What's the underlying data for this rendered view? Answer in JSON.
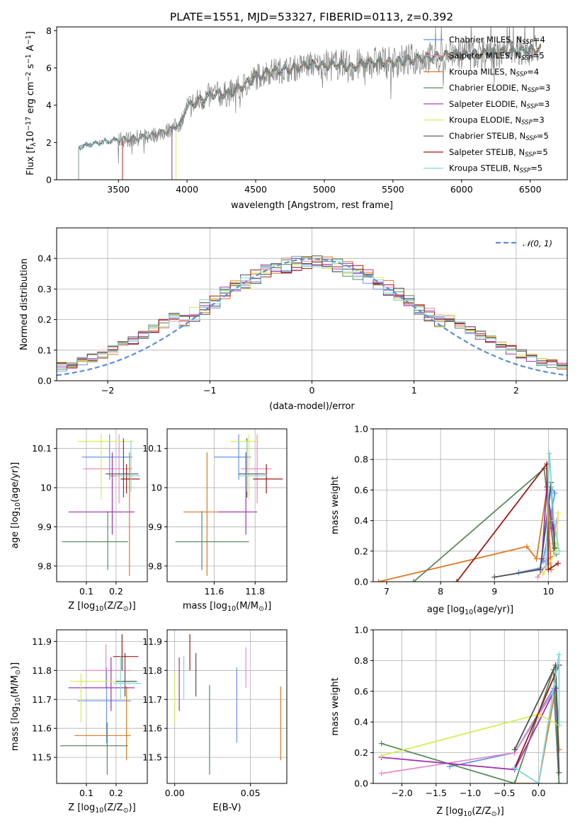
{
  "title": "PLATE=1551, MJD=53327, FIBERID=0113, z=0.392",
  "colors": [
    "#6495ed",
    "#e88bc4",
    "#dd7a20",
    "#5c8a5c",
    "#a030b0",
    "#d8ec50",
    "#505050",
    "#a01818",
    "#80d8d8"
  ],
  "chart_data": [
    {
      "id": "spectrum",
      "type": "line",
      "xlabel": "wavelength [Angstrom, rest frame]",
      "ylabel": "Flux [f",
      "ylabel_sub": "λ",
      "ylabel_mid": "10",
      "ylabel_exp1": "−17",
      "ylabel_mid2": " erg cm",
      "ylabel_exp2": "−2",
      "ylabel_mid3": " s",
      "ylabel_exp3": "−1",
      "ylabel_mid4": " A",
      "ylabel_exp4": "−1",
      "ylabel_end": "]",
      "xlim": [
        3050,
        6770
      ],
      "ylim": [
        0,
        8.2
      ],
      "xticks": [
        3500,
        4000,
        4500,
        5000,
        5500,
        6000,
        6500
      ],
      "yticks": [
        0,
        2,
        4,
        6,
        8
      ],
      "legend": [
        {
          "name": "Chabrier MILES, N",
          "sub": "SSP",
          "suffix": "=4"
        },
        {
          "name": "Salpeter MILES, N",
          "sub": "SSP",
          "suffix": "=5"
        },
        {
          "name": "Kroupa MILES, N",
          "sub": "SSP",
          "suffix": "=4"
        },
        {
          "name": "Chabrier ELODIE, N",
          "sub": "SSP",
          "suffix": "=3"
        },
        {
          "name": "Salpeter ELODIE, N",
          "sub": "SSP",
          "suffix": "=3"
        },
        {
          "name": "Kroupa ELODIE, N",
          "sub": "SSP",
          "suffix": "=3"
        },
        {
          "name": "Chabrier STELIB, N",
          "sub": "SSP",
          "suffix": "=5"
        },
        {
          "name": "Salpeter STELIB, N",
          "sub": "SSP",
          "suffix": "=5"
        },
        {
          "name": "Kroupa STELIB, N",
          "sub": "SSP",
          "suffix": "=5"
        }
      ],
      "data_start": 3210,
      "model_starts": [
        3210,
        3530,
        3530,
        3890,
        3890,
        3920,
        3210,
        3530,
        3210
      ],
      "continuum": [
        [
          3210,
          1.75
        ],
        [
          3300,
          1.9
        ],
        [
          3400,
          2.05
        ],
        [
          3500,
          2.15
        ],
        [
          3600,
          2.2
        ],
        [
          3700,
          2.3
        ],
        [
          3800,
          2.5
        ],
        [
          3850,
          2.6
        ],
        [
          3950,
          3.0
        ],
        [
          4000,
          3.9
        ],
        [
          4100,
          4.3
        ],
        [
          4200,
          4.6
        ],
        [
          4300,
          4.6
        ],
        [
          4400,
          5.0
        ],
        [
          4500,
          5.5
        ],
        [
          4600,
          5.8
        ],
        [
          4700,
          5.9
        ],
        [
          4800,
          6.0
        ],
        [
          4900,
          6.2
        ],
        [
          5000,
          6.1
        ],
        [
          5100,
          6.2
        ],
        [
          5200,
          6.0
        ],
        [
          5300,
          6.3
        ],
        [
          5400,
          6.3
        ],
        [
          5500,
          6.3
        ],
        [
          5600,
          6.4
        ],
        [
          5700,
          6.5
        ],
        [
          5800,
          6.6
        ],
        [
          5900,
          6.7
        ],
        [
          6000,
          6.7
        ],
        [
          6200,
          6.8
        ],
        [
          6400,
          6.9
        ],
        [
          6580,
          7.0
        ]
      ]
    },
    {
      "id": "residuals",
      "type": "step",
      "xlabel": "(data-model)/error",
      "ylabel": "Normed distribution",
      "xlim": [
        -2.5,
        2.5
      ],
      "ylim": [
        0,
        0.5
      ],
      "xticks": [
        -2,
        -1,
        0,
        1,
        2
      ],
      "xtick_labels": [
        "−2",
        "−1",
        "0",
        "1",
        "2"
      ],
      "yticks": [
        0.0,
        0.1,
        0.2,
        0.3,
        0.4
      ],
      "ytick_labels": [
        "0.0",
        "0.1",
        "0.2",
        "0.3",
        "0.4"
      ],
      "legend": "𝒩(0, 1)",
      "bin_width": 0.1
    },
    {
      "id": "age_vs_Z",
      "type": "errorbar",
      "xlabel": "Z [log",
      "xlabel_sub": "10",
      "xlabel_end": "(Z/Z",
      "xlabel_sub2": "⊙",
      "xlabel_end2": ")]",
      "ylabel": "age  [log",
      "ylabel_sub": "10",
      "ylabel_end": "(age/yr)]",
      "xlim": [
        0.0,
        0.305
      ],
      "ylim": [
        9.76,
        10.15
      ],
      "xticks": [
        0.1,
        0.2
      ],
      "yticks": [
        9.8,
        9.9,
        10.0,
        10.1
      ],
      "points": [
        {
          "x": 0.178,
          "xl": 0.085,
          "xh": 0.255,
          "y": 10.078,
          "yl": 10.02,
          "yh": 10.136
        },
        {
          "x": 0.21,
          "xl": 0.09,
          "xh": 0.255,
          "y": 10.048,
          "yl": 9.96,
          "yh": 10.136
        },
        {
          "x": 0.245,
          "xl": 0.18,
          "xh": 0.258,
          "y": 10.03,
          "yl": 9.775,
          "yh": 10.09
        },
        {
          "x": 0.172,
          "xl": 0.018,
          "xh": 0.24,
          "y": 9.862,
          "yl": 9.79,
          "yh": 9.94
        },
        {
          "x": 0.187,
          "xl": 0.04,
          "xh": 0.262,
          "y": 9.938,
          "yl": 9.88,
          "yh": 10.09
        },
        {
          "x": 0.15,
          "xl": 0.07,
          "xh": 0.26,
          "y": 10.118,
          "yl": 9.97,
          "yh": 10.136
        },
        {
          "x": 0.225,
          "xl": 0.165,
          "xh": 0.275,
          "y": 10.035,
          "yl": 9.975,
          "yh": 10.126
        },
        {
          "x": 0.235,
          "xl": 0.215,
          "xh": 0.28,
          "y": 10.022,
          "yl": 9.985,
          "yh": 10.06
        },
        {
          "x": 0.25,
          "xl": 0.2,
          "xh": 0.282,
          "y": 10.03,
          "yl": 9.99,
          "yh": 10.12
        }
      ]
    },
    {
      "id": "age_vs_mass",
      "type": "errorbar",
      "xlabel": "mass [log",
      "xlabel_sub": "10",
      "xlabel_end": "(M/M",
      "xlabel_sub2": "⊙",
      "xlabel_end2": ")]",
      "ylabel": "",
      "xlim": [
        11.37,
        11.955
      ],
      "ylim": [
        9.76,
        10.15
      ],
      "xticks": [
        11.6,
        11.8
      ],
      "yticks": [
        9.8,
        9.9,
        10.0,
        10.1
      ],
      "points": [
        {
          "x": 11.72,
          "xl": 11.6,
          "xh": 11.78,
          "y": 10.078,
          "yl": 10.02,
          "yh": 10.136
        },
        {
          "x": 11.81,
          "xl": 11.73,
          "xh": 11.88,
          "y": 10.048,
          "yl": 9.96,
          "yh": 10.136
        },
        {
          "x": 11.565,
          "xl": 11.45,
          "xh": 11.76,
          "y": 9.938,
          "yl": 9.775,
          "yh": 10.09
        },
        {
          "x": 11.54,
          "xl": 11.41,
          "xh": 11.77,
          "y": 9.862,
          "yl": 9.79,
          "yh": 9.94
        },
        {
          "x": 11.755,
          "xl": 11.62,
          "xh": 11.81,
          "y": 9.938,
          "yl": 9.88,
          "yh": 10.09
        },
        {
          "x": 11.77,
          "xl": 11.68,
          "xh": 11.82,
          "y": 10.118,
          "yl": 9.97,
          "yh": 10.136
        },
        {
          "x": 11.76,
          "xl": 11.72,
          "xh": 11.85,
          "y": 10.035,
          "yl": 9.975,
          "yh": 10.126
        },
        {
          "x": 11.855,
          "xl": 11.79,
          "xh": 11.935,
          "y": 10.022,
          "yl": 9.985,
          "yh": 10.06
        },
        {
          "x": 11.76,
          "xl": 11.72,
          "xh": 11.86,
          "y": 10.03,
          "yl": 9.99,
          "yh": 10.12
        }
      ]
    },
    {
      "id": "mw_vs_age",
      "type": "line",
      "xlabel": "age  [log",
      "xlabel_sub": "10",
      "xlabel_end": "(age/yr)]",
      "ylabel": "mass weight",
      "xlim": [
        6.75,
        10.35
      ],
      "ylim": [
        0,
        1.0
      ],
      "xticks": [
        7,
        8,
        9,
        10
      ],
      "yticks": [
        0.0,
        0.2,
        0.4,
        0.6,
        0.8,
        1.0
      ],
      "ytick_labels": [
        "0.0",
        "0.2",
        "0.4",
        "0.6",
        "0.8",
        "1.0"
      ],
      "series": [
        {
          "x": [
            9.45,
            9.85,
            10.05,
            10.12,
            9.9,
            10.15
          ],
          "y": [
            0.06,
            0.09,
            0.62,
            0.58,
            0.13,
            0.18
          ]
        },
        {
          "x": 9.8,
          "xs": [
            9.8,
            9.98,
            10.05,
            10.1,
            10.15
          ],
          "y": [
            0.03,
            0.12,
            0.45,
            0.25,
            0.4
          ]
        },
        {
          "x": [
            6.85,
            9.6,
            9.78,
            9.97,
            10.05
          ],
          "y": [
            0.0,
            0.23,
            0.15,
            0.6,
            0.08
          ]
        },
        {
          "x": [
            7.5,
            9.92,
            10.1
          ],
          "y": [
            0.0,
            0.74,
            0.2
          ]
        },
        {
          "x": [
            9.88,
            9.97,
            10.08
          ],
          "y": [
            0.15,
            0.62,
            0.35
          ]
        },
        {
          "x": [
            9.9,
            10.15,
            10.18
          ],
          "y": [
            0.05,
            0.2,
            0.45
          ]
        },
        {
          "x": [
            9.0,
            9.85,
            10.05,
            10.12
          ],
          "y": [
            0.03,
            0.08,
            0.65,
            0.22
          ]
        },
        {
          "x": [
            8.3,
            9.97,
            10.0,
            10.18
          ],
          "y": [
            0.0,
            0.77,
            0.08,
            0.12
          ]
        },
        {
          "x": [
            9.95,
            10.02,
            10.1,
            10.2
          ],
          "y": [
            0.1,
            0.84,
            0.4,
            0.2
          ]
        }
      ]
    },
    {
      "id": "mass_vs_Z",
      "type": "errorbar",
      "xlabel": "Z [log",
      "xlabel_sub": "10",
      "xlabel_end": "(Z/Z",
      "xlabel_sub2": "⊙",
      "xlabel_end2": ")]",
      "ylabel": "mass [log",
      "ylabel_sub": "10",
      "ylabel_end": "(M/M",
      "ylabel_sub2": "⊙",
      "ylabel_end2": ")]",
      "xlim": [
        0.0,
        0.305
      ],
      "ylim": [
        11.41,
        11.94
      ],
      "xticks": [
        0.1,
        0.2
      ],
      "yticks": [
        11.5,
        11.6,
        11.7,
        11.8,
        11.9
      ],
      "points": [
        {
          "x": 0.168,
          "xl": 0.07,
          "xh": 0.25,
          "y": 11.695,
          "yl": 11.55,
          "yh": 11.81
        },
        {
          "x": 0.166,
          "xl": 0.085,
          "xh": 0.25,
          "y": 11.8,
          "yl": 11.74,
          "yh": 11.89
        },
        {
          "x": 0.235,
          "xl": 0.06,
          "xh": 0.25,
          "y": 11.575,
          "yl": 11.49,
          "yh": 11.745
        },
        {
          "x": 0.17,
          "xl": 0.012,
          "xh": 0.24,
          "y": 11.54,
          "yl": 11.44,
          "yh": 11.62
        },
        {
          "x": 0.183,
          "xl": 0.04,
          "xh": 0.262,
          "y": 11.74,
          "yl": 11.66,
          "yh": 11.845
        },
        {
          "x": 0.082,
          "xl": 0.045,
          "xh": 0.26,
          "y": 11.762,
          "yl": 11.62,
          "yh": 11.79
        },
        {
          "x": 0.23,
          "xl": 0.2,
          "xh": 0.27,
          "y": 11.762,
          "yl": 11.71,
          "yh": 11.86
        },
        {
          "x": 0.22,
          "xl": 0.19,
          "xh": 0.275,
          "y": 11.848,
          "yl": 11.8,
          "yh": 11.925
        },
        {
          "x": 0.215,
          "xl": 0.19,
          "xh": 0.285,
          "y": 11.755,
          "yl": 11.7,
          "yh": 11.85
        }
      ]
    },
    {
      "id": "mass_vs_ebv",
      "type": "errorbar",
      "xlabel": "E(B-V)",
      "ylabel": "",
      "xlim": [
        -0.005,
        0.074
      ],
      "ylim": [
        11.41,
        11.94
      ],
      "xticks": [
        0.0,
        0.05
      ],
      "xtick_labels": [
        "0.00",
        "0.05"
      ],
      "yticks": [
        11.5,
        11.6,
        11.7,
        11.8,
        11.9
      ],
      "points": [
        {
          "x": 0.041,
          "y": 11.68,
          "yl": 11.55,
          "yh": 11.81
        },
        {
          "x": 0.047,
          "y": 11.8,
          "yl": 11.74,
          "yh": 11.88
        },
        {
          "x": 0.07,
          "y": 11.62,
          "yl": 11.49,
          "yh": 11.745
        },
        {
          "x": 0.023,
          "y": 11.6,
          "yl": 11.44,
          "yh": 11.75
        },
        {
          "x": 0.003,
          "y": 11.76,
          "yl": 11.66,
          "yh": 11.845
        },
        {
          "x": 0.0,
          "y": 11.7,
          "yl": 11.62,
          "yh": 11.79
        },
        {
          "x": 0.014,
          "y": 11.79,
          "yl": 11.71,
          "yh": 11.86
        },
        {
          "x": 0.01,
          "y": 11.85,
          "yl": 11.8,
          "yh": 11.925
        },
        {
          "x": 0.006,
          "y": 11.78,
          "yl": 11.7,
          "yh": 11.85
        }
      ]
    },
    {
      "id": "mw_vs_Z",
      "type": "line",
      "xlabel": "Z [log",
      "xlabel_sub": "10",
      "xlabel_end": "(Z/Z",
      "xlabel_sub2": "⊙",
      "xlabel_end2": ")]",
      "ylabel": "mass weight",
      "xlim": [
        -2.42,
        0.42
      ],
      "ylim": [
        0,
        1.0
      ],
      "xticks": [
        -2.0,
        -1.5,
        -1.0,
        -0.5,
        0.0
      ],
      "xtick_labels": [
        "−2.0",
        "−1.5",
        "−1.0",
        "−0.5",
        "0.0"
      ],
      "yticks": [
        0.0,
        0.2,
        0.4,
        0.6,
        0.8,
        1.0
      ],
      "ytick_labels": [
        "0.0",
        "0.2",
        "0.4",
        "0.6",
        "0.8",
        "1.0"
      ],
      "series": [
        {
          "x": [
            -1.3,
            -0.35,
            0.22,
            0.3
          ],
          "y": [
            0.11,
            0.2,
            0.62,
            0.0
          ]
        },
        {
          "x": [
            -2.3,
            -0.35,
            0.25,
            0.3
          ],
          "y": [
            0.065,
            0.2,
            0.62,
            0.38
          ]
        },
        {
          "x": [
            -0.35,
            0.0,
            0.25,
            0.3
          ],
          "y": [
            0.0,
            0.0,
            0.62,
            0.22
          ]
        },
        {
          "x": [
            -2.3,
            -0.35,
            0.22,
            0.3
          ],
          "y": [
            0.26,
            0.0,
            0.74,
            0.0
          ]
        },
        {
          "x": [
            -2.3,
            -0.35,
            0.25
          ],
          "y": [
            0.17,
            0.09,
            0.62
          ]
        },
        {
          "x": [
            -2.3,
            0.0,
            0.3
          ],
          "y": [
            0.18,
            0.45,
            0.38
          ]
        },
        {
          "x": [
            -0.35,
            0.25,
            0.3
          ],
          "y": [
            0.22,
            0.77,
            0.07
          ]
        },
        {
          "x": [
            -0.35,
            0.3
          ],
          "y": [
            0.1,
            0.77
          ]
        },
        {
          "x": [
            -0.35,
            0.0,
            0.3,
            0.3
          ],
          "y": [
            0.1,
            0.0,
            0.84,
            0.38
          ]
        }
      ]
    }
  ]
}
